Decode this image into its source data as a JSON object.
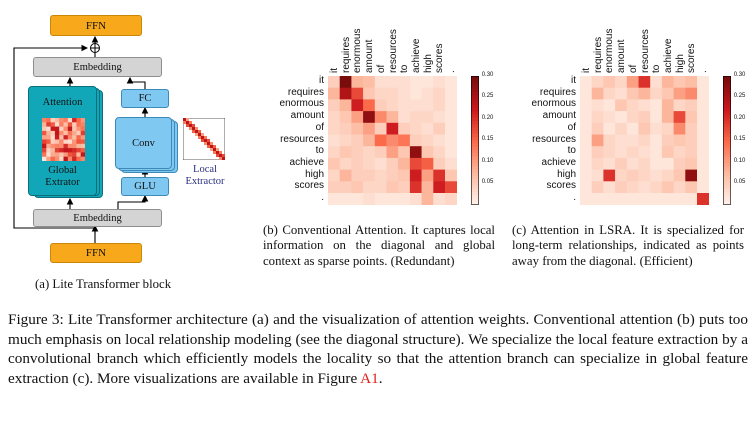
{
  "panel_a": {
    "ffn_top": "FFN",
    "ffn_bottom": "FFN",
    "embedding_top": "Embedding",
    "embedding_bottom": "Embedding",
    "attention": "Attention",
    "global_extractor": "Global\nExtrator",
    "fc": "FC",
    "conv": "Conv",
    "glu": "GLU",
    "local_extractor": "Local\nExtractor",
    "plus_symbol": "⊕",
    "caption": "(a) Lite Transformer block"
  },
  "panel_b": {
    "caption": "(b) Conventional Attention. It captures local information on the diagonal and global context as sparse points. (Redundant)"
  },
  "panel_c": {
    "caption": "(c) Attention in LSRA. It is specialized for long-term relationships, indicated as points away from the diagonal. (Efficient)"
  },
  "figure_caption": {
    "text": "Figure 3: Lite Transformer architecture (a) and the visualization of attention weights. Conventional attention (b) puts too much emphasis on local relationship modeling (see the diagonal structure). We specialize the local feature extraction by a convolutional branch which efficiently models the locality so that the attention branch can specialize in global feature extraction (c). More visualizations are available in Figure ",
    "ref": "A1",
    "end": "."
  },
  "colors": {
    "ffn": "#f7a81b",
    "embedding": "#d4d4d4",
    "attention": "#12a7b8",
    "conv": "#7fc8f1",
    "heat_max": "#7a0c0c"
  },
  "chart_data": [
    {
      "type": "heatmap",
      "title": "",
      "tokens": [
        "it",
        "requires",
        "enormous",
        "amount",
        "of",
        "resources",
        "to",
        "achieve",
        "high",
        "scores",
        "."
      ],
      "colorbar_ticks": [
        "0.05",
        "0.10",
        "0.15",
        "0.20",
        "0.25",
        "0.30"
      ],
      "colorbar_range": [
        0,
        0.3
      ],
      "values": [
        [
          0.05,
          0.3,
          0.08,
          0.07,
          0.03,
          0.03,
          0.03,
          0.02,
          0.02,
          0.03,
          0.02
        ],
        [
          0.08,
          0.25,
          0.18,
          0.06,
          0.04,
          0.04,
          0.03,
          0.02,
          0.03,
          0.04,
          0.02
        ],
        [
          0.05,
          0.08,
          0.22,
          0.15,
          0.05,
          0.04,
          0.03,
          0.03,
          0.03,
          0.04,
          0.02
        ],
        [
          0.04,
          0.06,
          0.1,
          0.28,
          0.12,
          0.08,
          0.03,
          0.04,
          0.04,
          0.03,
          0.02
        ],
        [
          0.04,
          0.05,
          0.07,
          0.1,
          0.05,
          0.22,
          0.05,
          0.04,
          0.03,
          0.05,
          0.02
        ],
        [
          0.03,
          0.04,
          0.05,
          0.08,
          0.15,
          0.12,
          0.14,
          0.05,
          0.04,
          0.03,
          0.02
        ],
        [
          0.04,
          0.06,
          0.05,
          0.04,
          0.05,
          0.1,
          0.06,
          0.28,
          0.06,
          0.04,
          0.02
        ],
        [
          0.06,
          0.04,
          0.05,
          0.04,
          0.03,
          0.05,
          0.08,
          0.18,
          0.16,
          0.05,
          0.03
        ],
        [
          0.04,
          0.08,
          0.05,
          0.05,
          0.04,
          0.05,
          0.06,
          0.22,
          0.1,
          0.2,
          0.06
        ],
        [
          0.05,
          0.05,
          0.06,
          0.04,
          0.04,
          0.06,
          0.05,
          0.2,
          0.08,
          0.22,
          0.18
        ],
        [
          0.02,
          0.02,
          0.02,
          0.03,
          0.02,
          0.02,
          0.02,
          0.03,
          0.08,
          0.03,
          0.04
        ]
      ]
    },
    {
      "type": "heatmap",
      "title": "",
      "tokens": [
        "it",
        "requires",
        "enormous",
        "amount",
        "of",
        "resources",
        "to",
        "achieve",
        "high",
        "scores",
        "."
      ],
      "colorbar_ticks": [
        "0.05",
        "0.10",
        "0.15",
        "0.20",
        "0.25",
        "0.30"
      ],
      "colorbar_range": [
        0,
        0.3
      ],
      "values": [
        [
          0.02,
          0.04,
          0.06,
          0.04,
          0.1,
          0.2,
          0.03,
          0.08,
          0.06,
          0.07,
          0.02
        ],
        [
          0.02,
          0.08,
          0.04,
          0.03,
          0.06,
          0.08,
          0.04,
          0.06,
          0.1,
          0.12,
          0.02
        ],
        [
          0.02,
          0.03,
          0.02,
          0.06,
          0.04,
          0.03,
          0.02,
          0.08,
          0.04,
          0.05,
          0.02
        ],
        [
          0.02,
          0.04,
          0.03,
          0.02,
          0.04,
          0.05,
          0.02,
          0.08,
          0.18,
          0.06,
          0.02
        ],
        [
          0.02,
          0.05,
          0.02,
          0.04,
          0.02,
          0.06,
          0.03,
          0.04,
          0.12,
          0.05,
          0.02
        ],
        [
          0.02,
          0.1,
          0.04,
          0.03,
          0.03,
          0.04,
          0.02,
          0.05,
          0.06,
          0.05,
          0.02
        ],
        [
          0.02,
          0.05,
          0.04,
          0.03,
          0.04,
          0.03,
          0.02,
          0.06,
          0.04,
          0.05,
          0.02
        ],
        [
          0.02,
          0.04,
          0.03,
          0.05,
          0.03,
          0.04,
          0.02,
          0.02,
          0.05,
          0.06,
          0.02
        ],
        [
          0.02,
          0.03,
          0.2,
          0.04,
          0.05,
          0.04,
          0.03,
          0.04,
          0.06,
          0.28,
          0.02
        ],
        [
          0.02,
          0.05,
          0.03,
          0.05,
          0.04,
          0.03,
          0.04,
          0.06,
          0.04,
          0.06,
          0.02
        ],
        [
          0.02,
          0.02,
          0.02,
          0.02,
          0.02,
          0.02,
          0.02,
          0.02,
          0.02,
          0.02,
          0.2
        ]
      ]
    }
  ]
}
